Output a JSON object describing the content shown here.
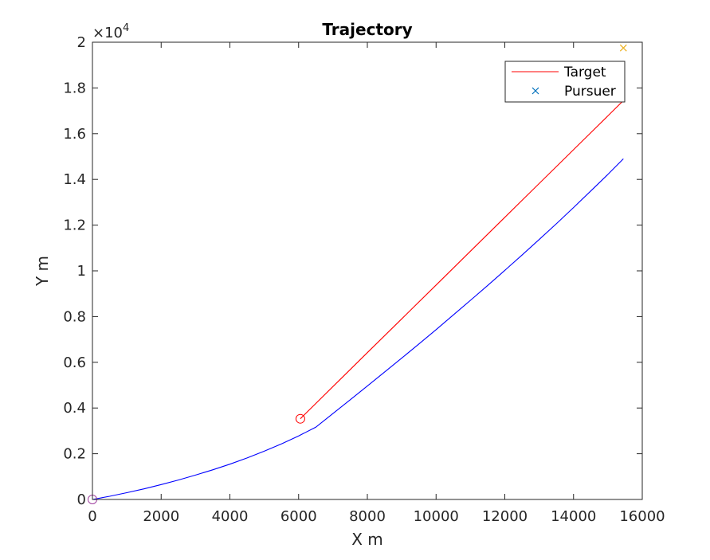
{
  "chart_data": {
    "type": "line",
    "title": "Trajectory",
    "xlabel": "X m",
    "ylabel": "Y m",
    "xlim": [
      0,
      16000
    ],
    "ylim": [
      0,
      20000
    ],
    "x_ticks": [
      0,
      2000,
      4000,
      6000,
      8000,
      10000,
      12000,
      14000,
      16000
    ],
    "x_tick_labels": [
      "0",
      "2000",
      "4000",
      "6000",
      "8000",
      "10000",
      "12000",
      "14000",
      "16000"
    ],
    "y_ticks": [
      0,
      2000,
      4000,
      6000,
      8000,
      10000,
      12000,
      14000,
      16000,
      18000,
      20000
    ],
    "y_tick_labels": [
      "0",
      "0.2",
      "0.4",
      "0.6",
      "0.8",
      "1",
      "1.2",
      "1.4",
      "1.6",
      "1.8",
      "2"
    ],
    "y_exponent_base": "×10",
    "y_exponent_power": "4",
    "grid": false,
    "legend_position": "top-right",
    "series": [
      {
        "name": "Target",
        "color": "#ff0000",
        "x": [
          6050,
          7000,
          8000,
          9000,
          10000,
          11000,
          12000,
          13000,
          14000,
          15000,
          15450
        ],
        "y": [
          3530,
          4940,
          6420,
          7900,
          9380,
          10860,
          12340,
          13820,
          15300,
          16780,
          17450
        ]
      },
      {
        "name": "Pursuer",
        "color": "#0000ff",
        "x": [
          0,
          500,
          1000,
          1500,
          2000,
          2500,
          3000,
          3500,
          4000,
          4500,
          5000,
          5500,
          6000,
          6500,
          7000,
          7500,
          8000,
          8500,
          9000,
          9500,
          10000,
          10500,
          11000,
          11500,
          12000,
          12500,
          13000,
          13500,
          14000,
          14500,
          15000,
          15450
        ],
        "y": [
          0,
          140,
          295,
          465,
          650,
          850,
          1065,
          1295,
          1545,
          1815,
          2110,
          2430,
          2780,
          3160,
          3760,
          4360,
          4960,
          5570,
          6180,
          6800,
          7430,
          8070,
          8710,
          9360,
          10020,
          10690,
          11370,
          12060,
          12770,
          13490,
          14220,
          14900
        ]
      }
    ],
    "markers": [
      {
        "shape": "circle",
        "color": "#ff0000",
        "x": 6050,
        "y": 3530
      },
      {
        "shape": "circle",
        "color": "#a040a0",
        "x": 0,
        "y": 0
      },
      {
        "shape": "cross",
        "color": "#edb120",
        "x": 15450,
        "y": 19750
      }
    ]
  },
  "legend": {
    "items": [
      {
        "label": "Target",
        "color": "#ff0000",
        "symbol": "line"
      },
      {
        "label": "Pursuer",
        "color": "#0072bd",
        "symbol": "cross"
      }
    ]
  }
}
